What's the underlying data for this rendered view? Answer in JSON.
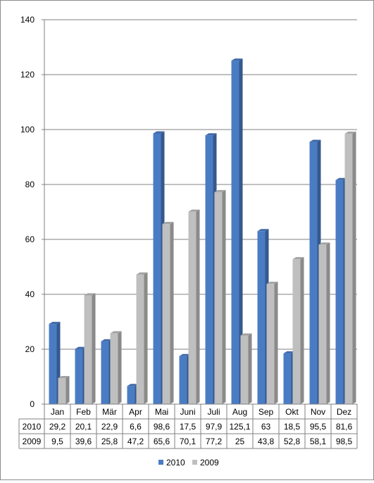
{
  "chart_data": {
    "type": "bar",
    "title": "",
    "xlabel": "",
    "ylabel": "",
    "ylim": [
      0,
      140
    ],
    "yticks": [
      0,
      20,
      40,
      60,
      80,
      100,
      120,
      140
    ],
    "ytick_labels": [
      "0",
      "20",
      "40",
      "60",
      "80",
      "100",
      "120",
      "140"
    ],
    "grid": true,
    "legend_position": "bottom-center",
    "categories": [
      "Jan",
      "Feb",
      "Mär",
      "Apr",
      "Mai",
      "Juni",
      "Juli",
      "Aug",
      "Sep",
      "Okt",
      "Nov",
      "Dez"
    ],
    "series": [
      {
        "name": "2010",
        "color": "#4a7cc4",
        "values": [
          29.2,
          20.1,
          22.9,
          6.6,
          98.6,
          17.5,
          97.9,
          125.1,
          63,
          18.5,
          95.5,
          81.6
        ],
        "labels": [
          "29,2",
          "20,1",
          "22,9",
          "6,6",
          "98,6",
          "17,5",
          "97,9",
          "125,1",
          "63",
          "18,5",
          "95,5",
          "81,6"
        ]
      },
      {
        "name": "2009",
        "color": "#bfbfbf",
        "values": [
          9.5,
          39.6,
          25.8,
          47.2,
          65.6,
          70.1,
          77.2,
          25,
          43.8,
          52.8,
          58.1,
          98.5
        ],
        "labels": [
          "9,5",
          "39,6",
          "25,8",
          "47,2",
          "65,6",
          "70,1",
          "77,2",
          "25",
          "43,8",
          "52,8",
          "58,1",
          "98,5"
        ]
      }
    ]
  }
}
